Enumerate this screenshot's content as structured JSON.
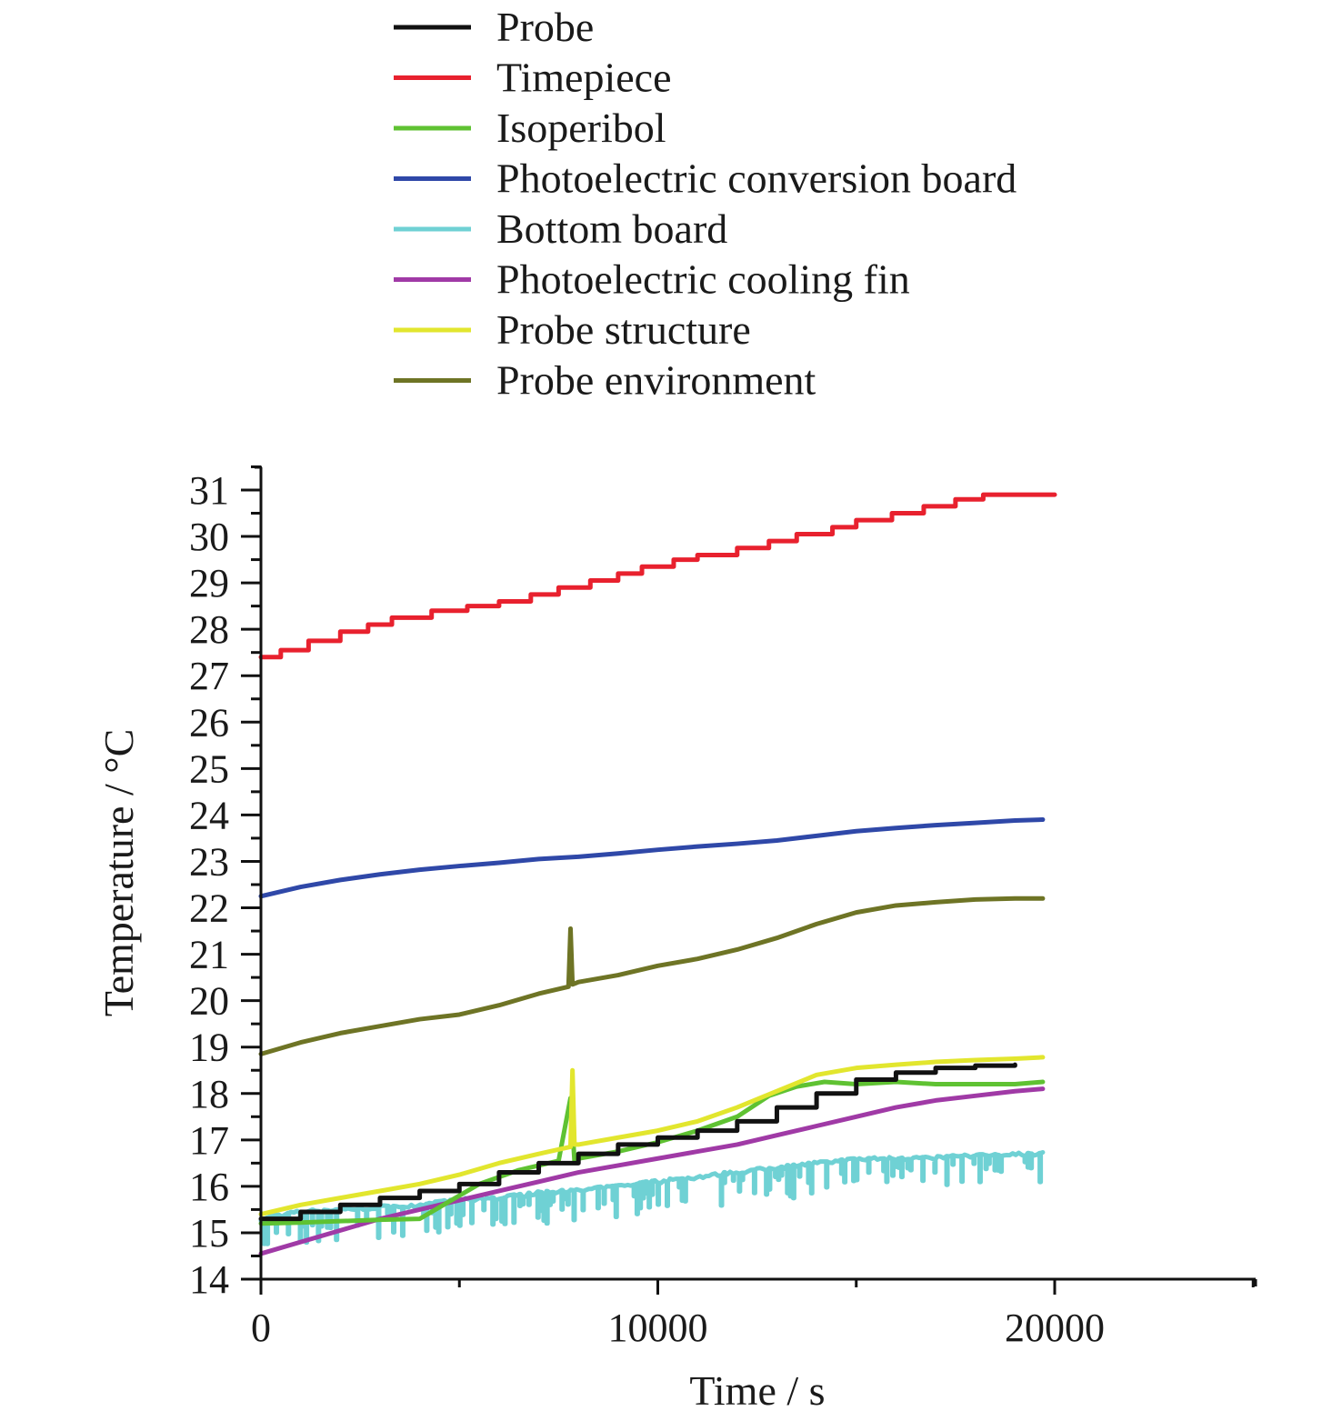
{
  "chart_data": {
    "type": "line",
    "title": "",
    "xlabel": "Time / s",
    "ylabel": "Temperature / °C",
    "xlim": [
      0,
      25000
    ],
    "ylim": [
      14,
      31.5
    ],
    "xticks": [
      0,
      10000,
      20000
    ],
    "xtick_labels": [
      "0",
      "10000",
      "20000"
    ],
    "x_minor_ticks": [
      5000,
      15000,
      25000
    ],
    "yticks": [
      14,
      15,
      16,
      17,
      18,
      19,
      20,
      21,
      22,
      23,
      24,
      25,
      26,
      27,
      28,
      29,
      30,
      31
    ],
    "ytick_labels": [
      "14",
      "15",
      "16",
      "17",
      "18",
      "19",
      "20",
      "21",
      "22",
      "23",
      "24",
      "25",
      "26",
      "27",
      "28",
      "29",
      "30",
      "31"
    ],
    "grid": false,
    "legend_position": "top",
    "series": [
      {
        "name": "Probe",
        "color": "#111111",
        "style": "step",
        "x": [
          0,
          1000,
          2000,
          3000,
          4000,
          5000,
          6000,
          7000,
          8000,
          9000,
          10000,
          11000,
          12000,
          13000,
          14000,
          15000,
          16000,
          17000,
          18000,
          19000
        ],
        "y": [
          15.3,
          15.45,
          15.6,
          15.75,
          15.9,
          16.05,
          16.3,
          16.5,
          16.7,
          16.9,
          17.05,
          17.2,
          17.4,
          17.7,
          18.0,
          18.3,
          18.45,
          18.55,
          18.6,
          18.62
        ]
      },
      {
        "name": "Timepiece",
        "color": "#e8212e",
        "style": "step",
        "x": [
          0,
          500,
          1200,
          2000,
          2700,
          3300,
          4300,
          5200,
          6000,
          6800,
          7500,
          8300,
          9000,
          9600,
          10400,
          11000,
          12000,
          12800,
          13500,
          14400,
          15000,
          15900,
          16700,
          17500,
          18200,
          20000
        ],
        "y": [
          27.4,
          27.55,
          27.75,
          27.95,
          28.1,
          28.25,
          28.4,
          28.5,
          28.6,
          28.75,
          28.9,
          29.05,
          29.2,
          29.35,
          29.5,
          29.6,
          29.75,
          29.9,
          30.05,
          30.2,
          30.35,
          30.5,
          30.65,
          30.8,
          30.9,
          30.9
        ]
      },
      {
        "name": "Isoperibol",
        "color": "#5fc232",
        "style": "line",
        "x": [
          0,
          1000,
          2000,
          3000,
          4000,
          4800,
          5500,
          6500,
          7500,
          7800,
          7900,
          8000,
          9000,
          10000,
          11000,
          12000,
          12800,
          13500,
          14200,
          15000,
          16000,
          17000,
          18000,
          19000,
          19700
        ],
        "y": [
          15.2,
          15.22,
          15.25,
          15.28,
          15.3,
          15.7,
          16.05,
          16.35,
          16.55,
          17.9,
          16.55,
          16.6,
          16.75,
          16.95,
          17.2,
          17.5,
          17.95,
          18.15,
          18.25,
          18.2,
          18.25,
          18.2,
          18.2,
          18.2,
          18.25
        ]
      },
      {
        "name": "Photoelectric conversion board",
        "color": "#2f48a8",
        "style": "line",
        "x": [
          0,
          1000,
          2000,
          3000,
          4000,
          5000,
          6000,
          7000,
          8000,
          9000,
          10000,
          11000,
          12000,
          13000,
          14000,
          15000,
          16000,
          17000,
          18000,
          19000,
          19700
        ],
        "y": [
          22.25,
          22.45,
          22.6,
          22.72,
          22.82,
          22.9,
          22.97,
          23.05,
          23.1,
          23.17,
          23.25,
          23.32,
          23.38,
          23.45,
          23.55,
          23.65,
          23.72,
          23.78,
          23.83,
          23.88,
          23.9
        ]
      },
      {
        "name": "Bottom board",
        "color": "#6fd1d4",
        "style": "noisy",
        "x": [
          0,
          1000,
          2000,
          3000,
          4000,
          5000,
          6000,
          7000,
          8000,
          9000,
          10000,
          11000,
          12000,
          13000,
          14000,
          15000,
          16000,
          17000,
          18000,
          19000,
          19700
        ],
        "y": [
          15.3,
          15.45,
          15.5,
          15.55,
          15.6,
          15.7,
          15.75,
          15.85,
          15.9,
          16.0,
          16.1,
          16.2,
          16.3,
          16.4,
          16.5,
          16.58,
          16.6,
          16.62,
          16.65,
          16.68,
          16.7
        ]
      },
      {
        "name": "Photoelectric cooling fin",
        "color": "#a03aa6",
        "style": "line",
        "x": [
          0,
          1000,
          2000,
          3000,
          4000,
          5000,
          6000,
          7000,
          7500,
          8000,
          9000,
          10000,
          11000,
          12000,
          13000,
          14000,
          15000,
          16000,
          17000,
          18000,
          19000,
          19700
        ],
        "y": [
          14.55,
          14.8,
          15.05,
          15.3,
          15.5,
          15.7,
          15.9,
          16.1,
          16.2,
          16.3,
          16.45,
          16.6,
          16.75,
          16.9,
          17.1,
          17.3,
          17.5,
          17.7,
          17.85,
          17.95,
          18.05,
          18.1
        ]
      },
      {
        "name": "Probe structure",
        "color": "#e2e62e",
        "style": "line",
        "x": [
          0,
          1000,
          2000,
          3000,
          4000,
          5000,
          6000,
          7000,
          7800,
          7850,
          7900,
          8000,
          9000,
          10000,
          11000,
          12000,
          13000,
          14000,
          15000,
          16000,
          17000,
          18000,
          19000,
          19700
        ],
        "y": [
          15.4,
          15.6,
          15.75,
          15.9,
          16.05,
          16.25,
          16.5,
          16.7,
          16.85,
          18.5,
          16.9,
          16.9,
          17.05,
          17.2,
          17.4,
          17.7,
          18.05,
          18.4,
          18.55,
          18.62,
          18.68,
          18.72,
          18.75,
          18.78
        ]
      },
      {
        "name": "Probe environment",
        "color": "#6e7425",
        "style": "line",
        "x": [
          0,
          1000,
          2000,
          3000,
          4000,
          5000,
          6000,
          7000,
          7750,
          7800,
          7850,
          8000,
          9000,
          10000,
          11000,
          12000,
          13000,
          14000,
          15000,
          16000,
          17000,
          18000,
          19000,
          19700
        ],
        "y": [
          18.85,
          19.1,
          19.3,
          19.45,
          19.6,
          19.7,
          19.9,
          20.15,
          20.3,
          21.55,
          20.35,
          20.4,
          20.55,
          20.75,
          20.9,
          21.1,
          21.35,
          21.65,
          21.9,
          22.05,
          22.12,
          22.18,
          22.2,
          22.2
        ]
      }
    ]
  }
}
